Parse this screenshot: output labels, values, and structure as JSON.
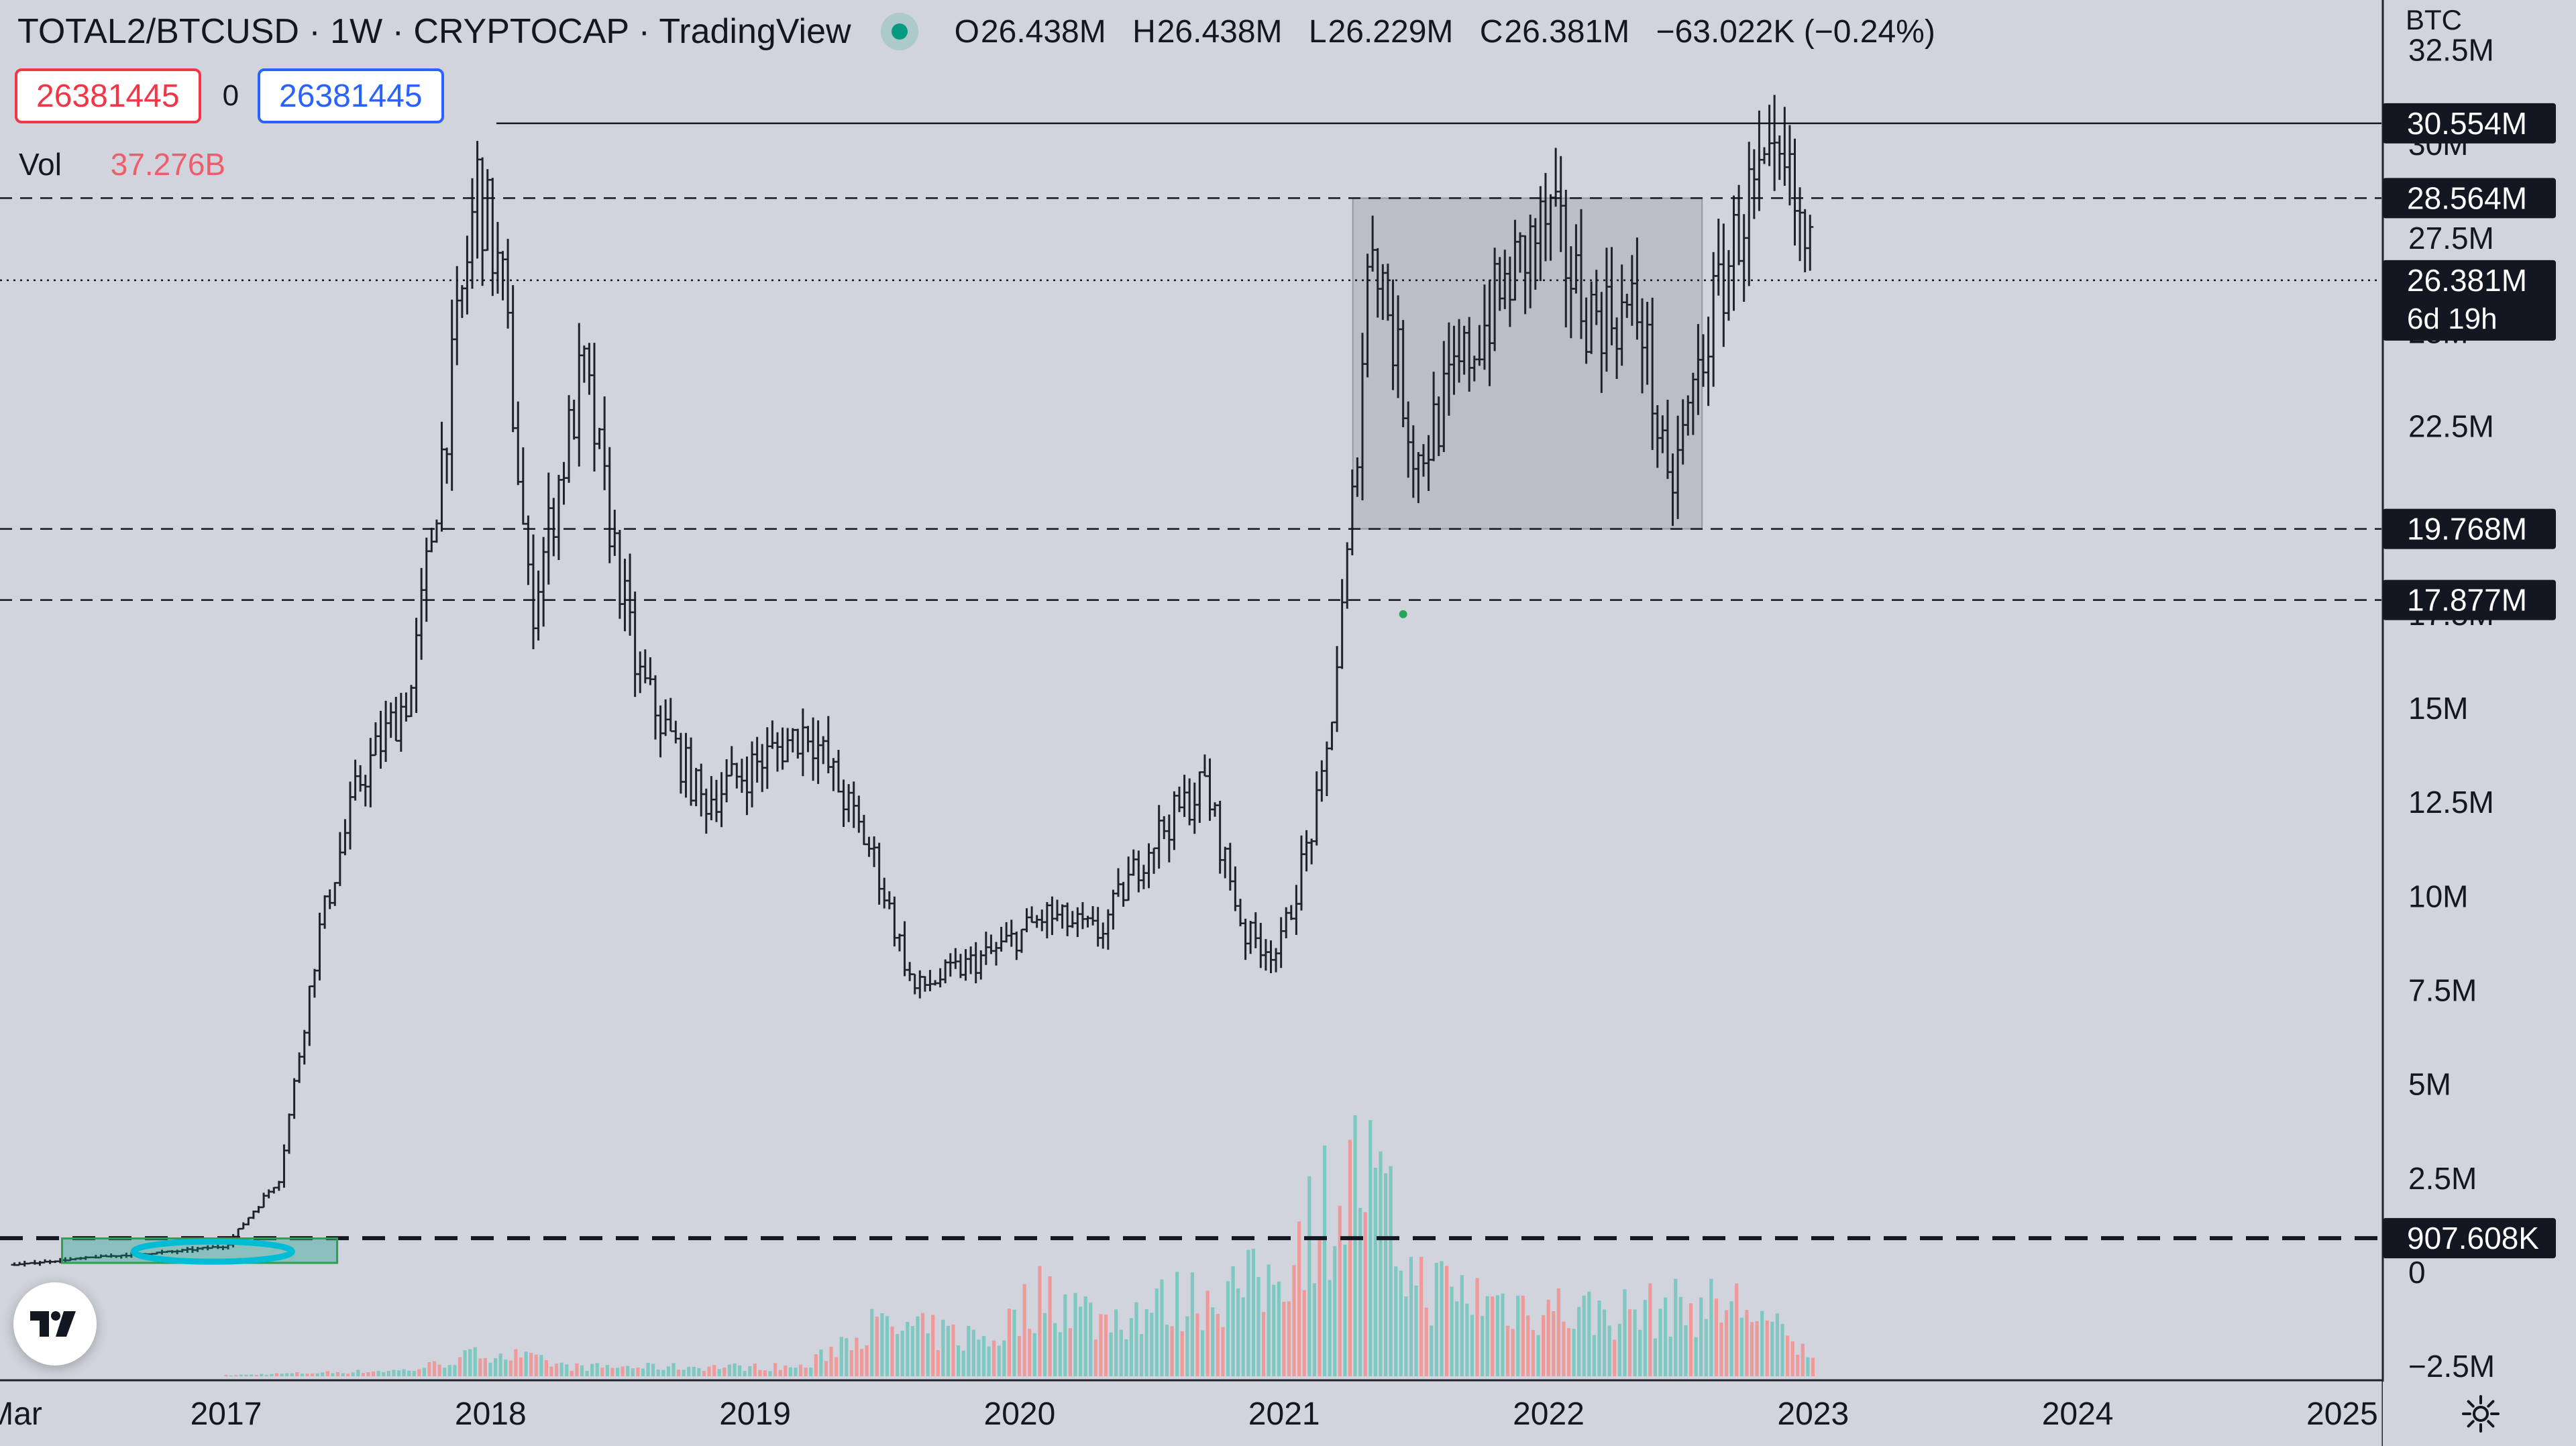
{
  "header": {
    "title": "TOTAL2/BTCUSD · 1W · CRYPTOCAP · TradingView",
    "ohlc": {
      "open_label": "O",
      "open": "26.438M",
      "high_label": "H",
      "high": "26.438M",
      "low_label": "L",
      "low": "26.229M",
      "close_label": "C",
      "close": "26.381M",
      "change": "−63.022K (−0.24%)"
    }
  },
  "orders": {
    "sell_price": "26381445",
    "spread": "0",
    "buy_price": "26381445"
  },
  "volume_legend": {
    "label": "Vol",
    "value": "37.276B"
  },
  "price_axis": {
    "currency": "BTC",
    "ticks": [
      {
        "label": "32.5M",
        "value": 32.5
      },
      {
        "label": "30M",
        "value": 30
      },
      {
        "label": "27.5M",
        "value": 27.5
      },
      {
        "label": "25M",
        "value": 25
      },
      {
        "label": "22.5M",
        "value": 22.5
      },
      {
        "label": "17.5M",
        "value": 17.5
      },
      {
        "label": "15M",
        "value": 15
      },
      {
        "label": "12.5M",
        "value": 12.5
      },
      {
        "label": "10M",
        "value": 10
      },
      {
        "label": "7.5M",
        "value": 7.5
      },
      {
        "label": "5M",
        "value": 5
      },
      {
        "label": "2.5M",
        "value": 2.5
      },
      {
        "label": "0",
        "value": 0
      },
      {
        "label": "−2.5M",
        "value": -2.5
      }
    ],
    "level_labels": [
      {
        "label": "30.554M",
        "value": 30.554,
        "style": "solid"
      },
      {
        "label": "28.564M",
        "value": 28.564,
        "style": "dashed"
      },
      {
        "label": "19.768M",
        "value": 19.768,
        "style": "dashed"
      },
      {
        "label": "17.877M",
        "value": 17.877,
        "style": "dashed"
      },
      {
        "label": "907.608K",
        "value": 0.9076,
        "style": "bold-dashed"
      }
    ],
    "current_price": {
      "label": "26.381M",
      "countdown": "6d 19h",
      "value": 26.381
    }
  },
  "time_axis": {
    "labels": [
      {
        "label": "Mar",
        "year": 2016.2
      },
      {
        "label": "2017",
        "year": 2017
      },
      {
        "label": "2018",
        "year": 2018
      },
      {
        "label": "2019",
        "year": 2019
      },
      {
        "label": "2020",
        "year": 2020
      },
      {
        "label": "2021",
        "year": 2021
      },
      {
        "label": "2022",
        "year": 2022
      },
      {
        "label": "2023",
        "year": 2023
      },
      {
        "label": "2024",
        "year": 2024
      },
      {
        "label": "2025",
        "year": 2025
      }
    ]
  },
  "drawings": {
    "range_box": {
      "from_year": 2021.26,
      "to_year": 2022.58,
      "top": 28.564,
      "bottom": 19.768
    },
    "accumulation_box": {
      "from_year": 2016.38,
      "to_year": 2017.42,
      "top": 0.9,
      "bottom": 0.25
    }
  },
  "chart_data": {
    "type": "line",
    "symbol": "TOTAL2/BTCUSD",
    "interval": "1W",
    "unit": "BTC",
    "ylim": [
      -2.5,
      32.5
    ],
    "x": [
      2016.2,
      2016.5,
      2016.8,
      2017.0,
      2017.2,
      2017.35,
      2017.5,
      2017.7,
      2017.95,
      2018.05,
      2018.15,
      2018.35,
      2018.55,
      2018.8,
      2019.0,
      2019.2,
      2019.45,
      2019.6,
      2019.75,
      2019.9,
      2020.1,
      2020.3,
      2020.5,
      2020.7,
      2020.85,
      2020.98,
      2021.15,
      2021.25,
      2021.33,
      2021.5,
      2021.7,
      2021.9,
      2022.0,
      2022.15,
      2022.35,
      2022.45,
      2022.6,
      2022.75,
      2022.9,
      2023.0
    ],
    "close": [
      0.2,
      0.4,
      0.55,
      0.7,
      2.5,
      9.0,
      13.0,
      15.5,
      29.0,
      26.0,
      17.5,
      24.0,
      16.0,
      12.5,
      13.5,
      14.5,
      11.0,
      7.5,
      8.0,
      8.5,
      9.5,
      9.0,
      11.5,
      13.0,
      9.0,
      8.5,
      13.0,
      19.5,
      28.0,
      21.5,
      24.5,
      27.0,
      28.0,
      25.5,
      25.5,
      20.5,
      25.0,
      28.5,
      29.0,
      26.4
    ],
    "volume_series": [
      {
        "year": 2017.0,
        "value": 0.03
      },
      {
        "year": 2017.7,
        "value": 0.2
      },
      {
        "year": 2018.0,
        "value": 0.8
      },
      {
        "year": 2018.3,
        "value": 0.3
      },
      {
        "year": 2019.2,
        "value": 0.3
      },
      {
        "year": 2019.4,
        "value": 1.6
      },
      {
        "year": 2019.9,
        "value": 1.2
      },
      {
        "year": 2020.1,
        "value": 2.8
      },
      {
        "year": 2020.3,
        "value": 1.8
      },
      {
        "year": 2020.7,
        "value": 2.6
      },
      {
        "year": 2020.95,
        "value": 3.0
      },
      {
        "year": 2021.1,
        "value": 5.0
      },
      {
        "year": 2021.3,
        "value": 6.6
      },
      {
        "year": 2021.5,
        "value": 3.0
      },
      {
        "year": 2021.8,
        "value": 2.4
      },
      {
        "year": 2022.2,
        "value": 2.0
      },
      {
        "year": 2022.5,
        "value": 2.2
      },
      {
        "year": 2022.75,
        "value": 2.3
      },
      {
        "year": 2022.95,
        "value": 0.8
      }
    ]
  },
  "colors": {
    "background": "#d1d4dc",
    "candle": "#1e222d",
    "volume_up": "#7fc8c2",
    "volume_down": "#ef9a9a",
    "accent_green": "#089981",
    "accent_blue": "#00bcd4",
    "box_fill": "#a9acb5"
  },
  "icons": {
    "logo": "tradingview-logo-icon",
    "settings": "gear-icon",
    "status": "market-open-dot-icon"
  }
}
